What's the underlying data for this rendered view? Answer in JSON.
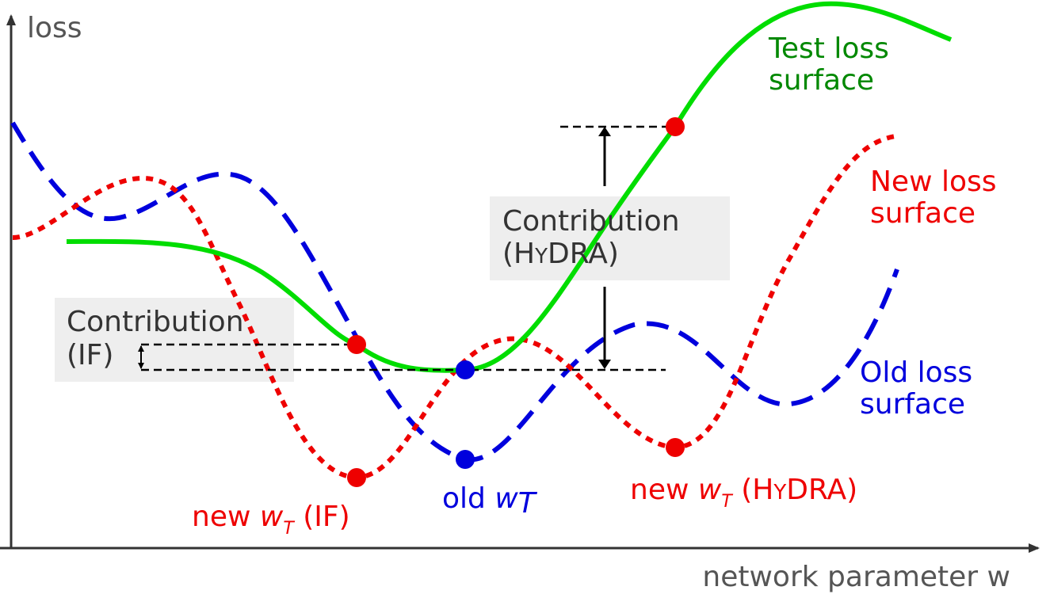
{
  "axes": {
    "y_label": "loss",
    "x_label": "network parameter w"
  },
  "curves": {
    "test": {
      "label_line1": "Test loss",
      "label_line2": "surface",
      "color": "#00dd00",
      "label_color": "#008800"
    },
    "new": {
      "label_line1": "New loss",
      "label_line2": "surface",
      "color": "#ee0000"
    },
    "old": {
      "label_line1": "Old loss",
      "label_line2": "surface",
      "color": "#0000dd"
    }
  },
  "contributions": {
    "if": {
      "line1": "Contribution",
      "line2": "(IF)"
    },
    "hydra": {
      "line1": "Contribution",
      "line2_open": "(H",
      "line2_small": "Y",
      "line2_close": "DRA)"
    }
  },
  "points": {
    "new_if": {
      "prefix": "new ",
      "var": "w",
      "sub": "T",
      "suffix": " (IF)",
      "color": "#ee0000"
    },
    "old": {
      "prefix": "old ",
      "var": "w",
      "sub": "T",
      "color": "#0000dd"
    },
    "new_hydra": {
      "prefix": "new ",
      "var": "w",
      "sub": "T",
      "suffix_open": " (H",
      "suffix_small": "Y",
      "suffix_close": "DRA)",
      "color": "#ee0000"
    }
  },
  "colors": {
    "axis": "#333333",
    "box_bg": "#eeeeee",
    "guide": "#000000"
  }
}
